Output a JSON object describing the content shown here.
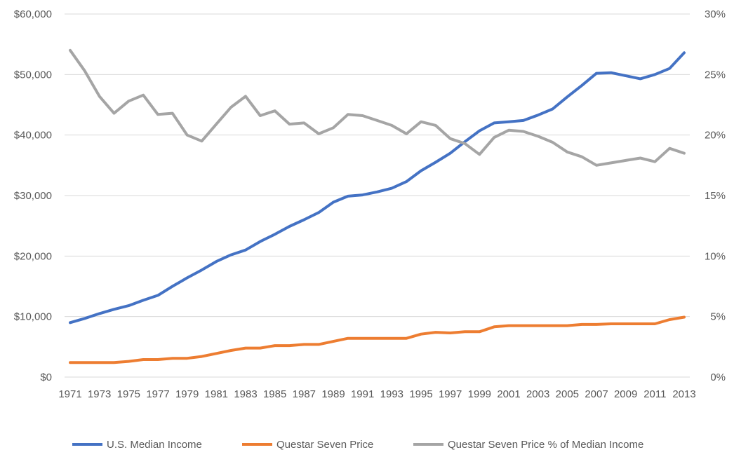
{
  "chart_data": {
    "type": "line",
    "title": "",
    "xlabel": "",
    "ylabel": "",
    "y2label": "",
    "grid": "horizontal",
    "legend_position": "bottom",
    "x": [
      1971,
      1972,
      1973,
      1974,
      1975,
      1976,
      1977,
      1978,
      1979,
      1980,
      1981,
      1982,
      1983,
      1984,
      1985,
      1986,
      1987,
      1988,
      1989,
      1990,
      1991,
      1992,
      1993,
      1994,
      1995,
      1996,
      1997,
      1998,
      1999,
      2000,
      2001,
      2002,
      2003,
      2004,
      2005,
      2006,
      2007,
      2008,
      2009,
      2010,
      2011,
      2012,
      2013
    ],
    "x_tick_labels": [
      "1971",
      "1973",
      "1975",
      "1977",
      "1979",
      "1981",
      "1983",
      "1985",
      "1987",
      "1989",
      "1991",
      "1993",
      "1995",
      "1997",
      "1999",
      "2001",
      "2003",
      "2005",
      "2007",
      "2009",
      "2011",
      "2013"
    ],
    "y_left": {
      "ylim": [
        0,
        60000
      ],
      "ticks": [
        0,
        10000,
        20000,
        30000,
        40000,
        50000,
        60000
      ],
      "tick_labels": [
        "$0",
        "$10,000",
        "$20,000",
        "$30,000",
        "$40,000",
        "$50,000",
        "$60,000"
      ]
    },
    "y_right": {
      "ylim": [
        0,
        0.3
      ],
      "ticks": [
        0,
        0.05,
        0.1,
        0.15,
        0.2,
        0.25,
        0.3
      ],
      "tick_labels": [
        "0%",
        "5%",
        "10%",
        "15%",
        "20%",
        "25%",
        "30%"
      ]
    },
    "series": [
      {
        "name": "U.S. Median Income",
        "axis": "left",
        "color": "#4472C4",
        "values": [
          9000,
          9700,
          10500,
          11200,
          11800,
          12700,
          13500,
          15000,
          16400,
          17700,
          19100,
          20200,
          21000,
          22400,
          23600,
          24900,
          26000,
          27200,
          28900,
          29900,
          30100,
          30600,
          31200,
          32300,
          34100,
          35500,
          37000,
          38900,
          40700,
          42000,
          42200,
          42400,
          43300,
          44300,
          46300,
          48200,
          50200,
          50300,
          49800,
          49300,
          50000,
          51000,
          53600
        ]
      },
      {
        "name": "Questar Seven Price",
        "axis": "left",
        "color": "#ED7D31",
        "values": [
          2400,
          2400,
          2400,
          2400,
          2600,
          2900,
          2900,
          3100,
          3100,
          3400,
          3900,
          4400,
          4800,
          4800,
          5200,
          5200,
          5400,
          5400,
          5900,
          6400,
          6400,
          6400,
          6400,
          6400,
          7100,
          7400,
          7300,
          7500,
          7500,
          8300,
          8500,
          8500,
          8500,
          8500,
          8500,
          8700,
          8700,
          8800,
          8800,
          8800,
          8800,
          9500,
          9900
        ]
      },
      {
        "name": "Questar Seven Price % of Median Income",
        "axis": "right",
        "color": "#A5A5A5",
        "values": [
          0.27,
          0.253,
          0.232,
          0.218,
          0.228,
          0.233,
          0.217,
          0.218,
          0.2,
          0.195,
          0.209,
          0.223,
          0.232,
          0.216,
          0.22,
          0.209,
          0.21,
          0.201,
          0.206,
          0.217,
          0.216,
          0.212,
          0.208,
          0.201,
          0.211,
          0.208,
          0.197,
          0.193,
          0.184,
          0.198,
          0.204,
          0.203,
          0.199,
          0.194,
          0.186,
          0.182,
          0.175,
          0.177,
          0.179,
          0.181,
          0.178,
          0.189,
          0.185
        ]
      }
    ]
  }
}
